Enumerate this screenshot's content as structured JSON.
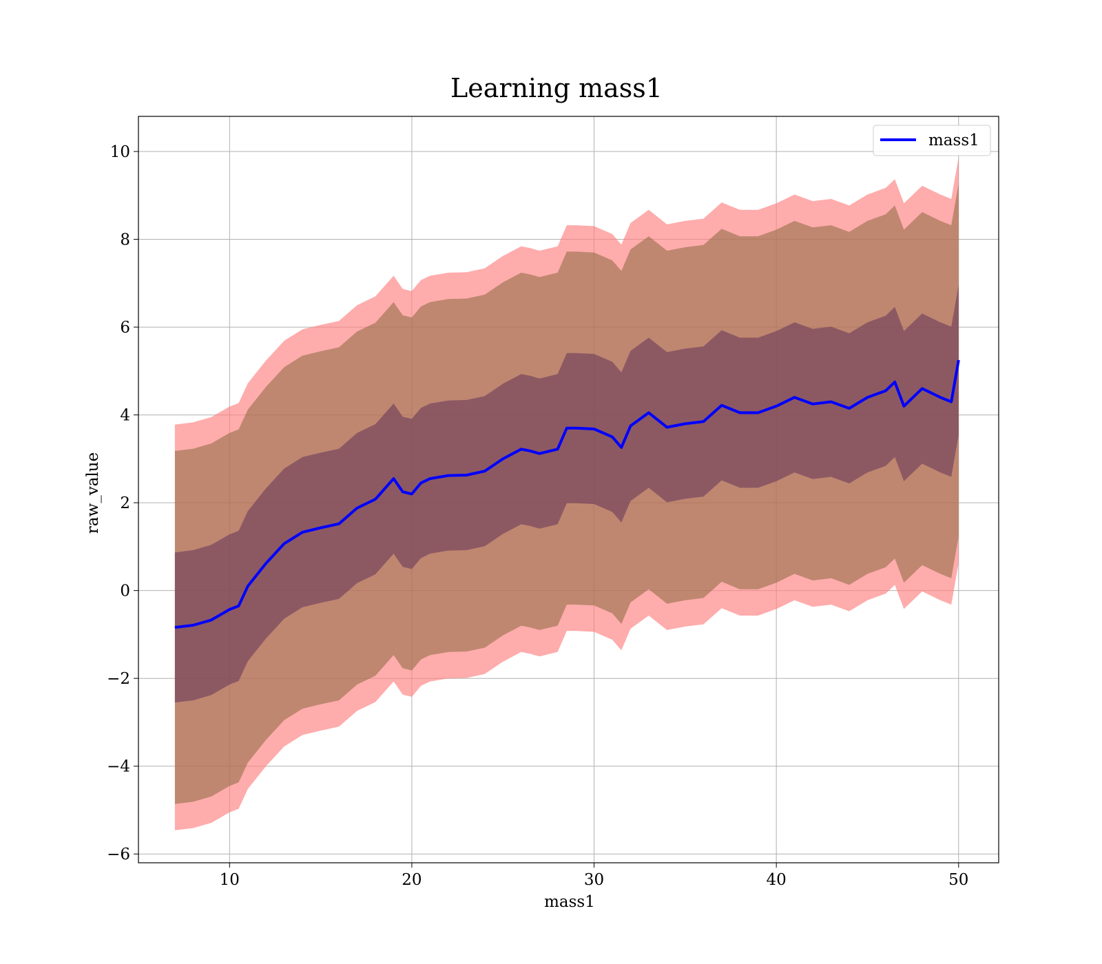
{
  "chart_data": {
    "type": "line",
    "title": "Learning mass1",
    "xlabel": "mass1",
    "ylabel": "raw_value",
    "xlim": [
      5.0,
      52.2
    ],
    "ylim": [
      -6.2,
      10.8
    ],
    "xticks": [
      10,
      20,
      30,
      40,
      50
    ],
    "xtick_labels": [
      "10",
      "20",
      "30",
      "40",
      "50"
    ],
    "yticks": [
      -6,
      -4,
      -2,
      0,
      2,
      4,
      6,
      8,
      10
    ],
    "ytick_labels": [
      "−6",
      "−4",
      "−2",
      "0",
      "2",
      "4",
      "6",
      "8",
      "10"
    ],
    "grid": true,
    "legend": {
      "position": "top-right",
      "entries": [
        "mass1"
      ]
    },
    "colors": {
      "mean_line": "#0000ff",
      "band_outer": "#ff8080",
      "band_middle": "#8b6a40",
      "band_inner": "#6b3a5a",
      "grid": "#b0b0b0",
      "axes": "#000000"
    },
    "series": [
      {
        "name": "mass1",
        "x": [
          7.0,
          8.0,
          9.0,
          10.0,
          10.5,
          11.0,
          12.0,
          13.0,
          14.0,
          15.0,
          16.0,
          17.0,
          18.0,
          19.0,
          19.5,
          20.0,
          20.5,
          21.0,
          22.0,
          23.0,
          24.0,
          25.0,
          26.0,
          26.5,
          27.0,
          28.0,
          28.5,
          29.0,
          30.0,
          31.0,
          31.5,
          32.0,
          33.0,
          34.0,
          35.0,
          36.0,
          37.0,
          38.0,
          39.0,
          40.0,
          41.0,
          42.0,
          43.0,
          44.0,
          45.0,
          46.0,
          46.5,
          47.0,
          48.0,
          49.0,
          49.6,
          50.0
        ],
        "mean": [
          -0.84,
          -0.79,
          -0.67,
          -0.43,
          -0.35,
          0.1,
          0.62,
          1.07,
          1.33,
          1.43,
          1.52,
          1.88,
          2.08,
          2.55,
          2.25,
          2.2,
          2.45,
          2.55,
          2.62,
          2.63,
          2.72,
          3.0,
          3.22,
          3.18,
          3.12,
          3.22,
          3.7,
          3.7,
          3.68,
          3.5,
          3.26,
          3.75,
          4.05,
          3.72,
          3.8,
          3.85,
          4.22,
          4.05,
          4.05,
          4.2,
          4.4,
          4.25,
          4.3,
          4.15,
          4.4,
          4.55,
          4.75,
          4.2,
          4.6,
          4.4,
          4.3,
          5.25
        ],
        "band_1sd_low": [
          -2.55,
          -2.5,
          -2.38,
          -2.14,
          -2.06,
          -1.61,
          -1.09,
          -0.64,
          -0.38,
          -0.28,
          -0.19,
          0.17,
          0.37,
          0.84,
          0.54,
          0.49,
          0.74,
          0.84,
          0.91,
          0.92,
          1.01,
          1.29,
          1.51,
          1.47,
          1.41,
          1.51,
          1.99,
          1.99,
          1.97,
          1.79,
          1.55,
          2.04,
          2.34,
          2.01,
          2.09,
          2.14,
          2.51,
          2.34,
          2.34,
          2.49,
          2.69,
          2.54,
          2.59,
          2.44,
          2.69,
          2.84,
          3.04,
          2.49,
          2.89,
          2.69,
          2.59,
          3.54
        ],
        "band_1sd_high": [
          0.87,
          0.92,
          1.04,
          1.28,
          1.36,
          1.81,
          2.33,
          2.78,
          3.04,
          3.14,
          3.23,
          3.59,
          3.79,
          4.26,
          3.96,
          3.91,
          4.16,
          4.26,
          4.33,
          4.34,
          4.43,
          4.71,
          4.93,
          4.89,
          4.83,
          4.93,
          5.41,
          5.41,
          5.39,
          5.21,
          4.97,
          5.46,
          5.76,
          5.43,
          5.51,
          5.56,
          5.93,
          5.76,
          5.76,
          5.91,
          6.11,
          5.96,
          6.01,
          5.86,
          6.11,
          6.26,
          6.46,
          5.91,
          6.31,
          6.11,
          6.01,
          6.96
        ],
        "band_2sd_low": [
          -4.86,
          -4.81,
          -4.69,
          -4.45,
          -4.37,
          -3.92,
          -3.4,
          -2.95,
          -2.69,
          -2.59,
          -2.5,
          -2.14,
          -1.94,
          -1.47,
          -1.77,
          -1.82,
          -1.57,
          -1.47,
          -1.4,
          -1.39,
          -1.3,
          -1.02,
          -0.8,
          -0.84,
          -0.9,
          -0.8,
          -0.32,
          -0.32,
          -0.34,
          -0.52,
          -0.76,
          -0.27,
          0.03,
          -0.3,
          -0.22,
          -0.17,
          0.2,
          0.03,
          0.03,
          0.18,
          0.38,
          0.23,
          0.28,
          0.13,
          0.38,
          0.53,
          0.73,
          0.18,
          0.58,
          0.38,
          0.28,
          1.23
        ],
        "band_2sd_high": [
          3.18,
          3.23,
          3.35,
          3.59,
          3.67,
          4.12,
          4.64,
          5.09,
          5.35,
          5.45,
          5.54,
          5.9,
          6.1,
          6.57,
          6.27,
          6.22,
          6.47,
          6.57,
          6.64,
          6.65,
          6.74,
          7.02,
          7.24,
          7.2,
          7.14,
          7.24,
          7.72,
          7.72,
          7.7,
          7.52,
          7.28,
          7.77,
          8.07,
          7.74,
          7.82,
          7.87,
          8.24,
          8.07,
          8.07,
          8.22,
          8.42,
          8.27,
          8.32,
          8.17,
          8.42,
          8.57,
          8.77,
          8.22,
          8.62,
          8.42,
          8.32,
          9.27
        ],
        "band_3sd_low": [
          -5.46,
          -5.41,
          -5.29,
          -5.05,
          -4.97,
          -4.52,
          -4.0,
          -3.55,
          -3.29,
          -3.19,
          -3.1,
          -2.74,
          -2.54,
          -2.07,
          -2.37,
          -2.42,
          -2.17,
          -2.07,
          -2.0,
          -1.99,
          -1.9,
          -1.62,
          -1.4,
          -1.44,
          -1.5,
          -1.4,
          -0.92,
          -0.92,
          -0.94,
          -1.12,
          -1.36,
          -0.87,
          -0.57,
          -0.9,
          -0.82,
          -0.77,
          -0.4,
          -0.57,
          -0.57,
          -0.42,
          -0.22,
          -0.37,
          -0.32,
          -0.47,
          -0.22,
          -0.07,
          0.13,
          -0.42,
          -0.02,
          -0.22,
          -0.32,
          0.63
        ],
        "band_3sd_high": [
          3.78,
          3.83,
          3.95,
          4.19,
          4.27,
          4.72,
          5.24,
          5.69,
          5.95,
          6.05,
          6.14,
          6.5,
          6.7,
          7.17,
          6.87,
          6.82,
          7.07,
          7.17,
          7.24,
          7.25,
          7.34,
          7.62,
          7.84,
          7.8,
          7.74,
          7.84,
          8.32,
          8.32,
          8.3,
          8.12,
          7.88,
          8.37,
          8.67,
          8.34,
          8.42,
          8.47,
          8.84,
          8.67,
          8.67,
          8.82,
          9.02,
          8.87,
          8.92,
          8.77,
          9.02,
          9.17,
          9.37,
          8.82,
          9.22,
          9.02,
          8.92,
          9.87
        ]
      }
    ]
  }
}
